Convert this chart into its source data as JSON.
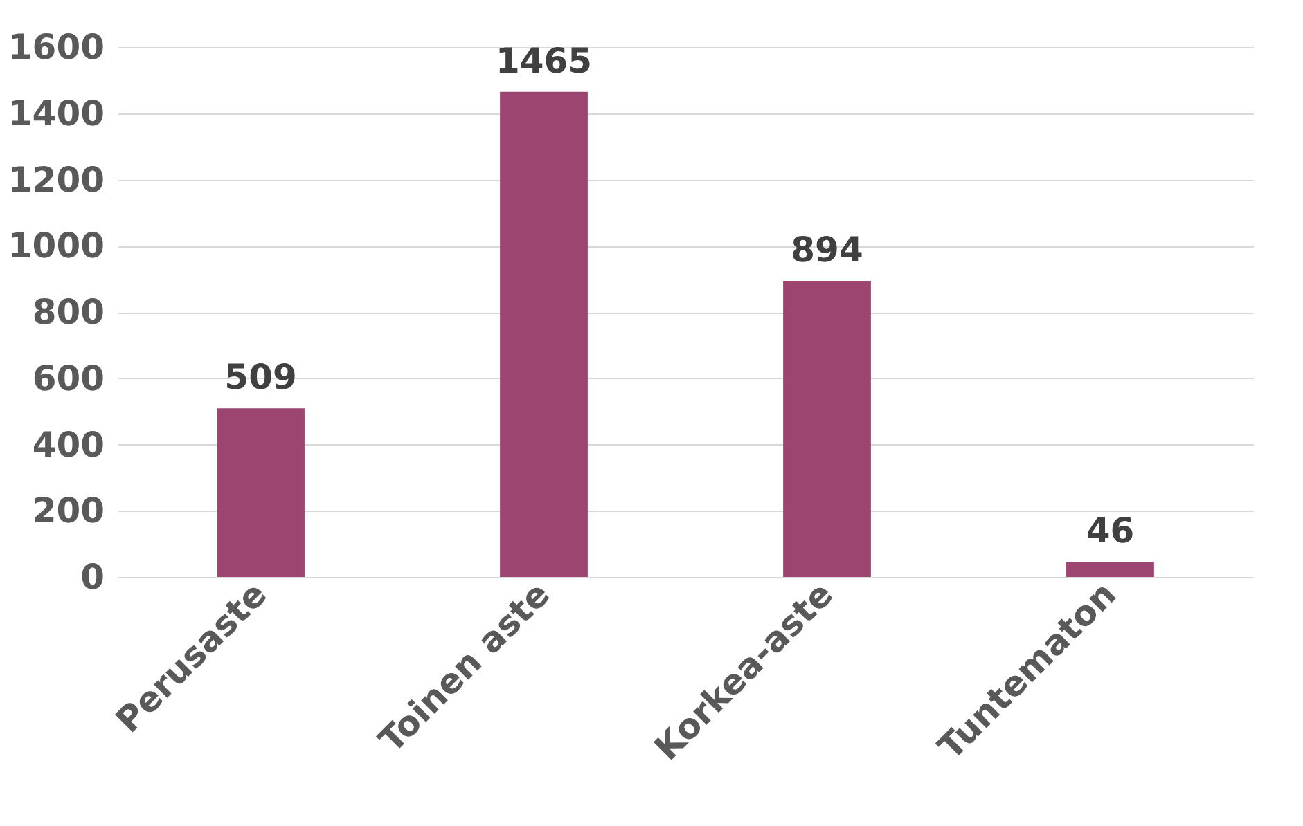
{
  "chart_data": {
    "type": "bar",
    "categories": [
      "Perusaste",
      "Toinen aste",
      "Korkea-aste",
      "Tuntematon"
    ],
    "values": [
      509,
      1465,
      894,
      46
    ],
    "color": "#9b4570",
    "ylim": [
      0,
      1600
    ],
    "yticks": [
      0,
      200,
      400,
      600,
      800,
      1000,
      1200,
      1400,
      1600
    ],
    "grid": "y",
    "data_labels": true
  }
}
